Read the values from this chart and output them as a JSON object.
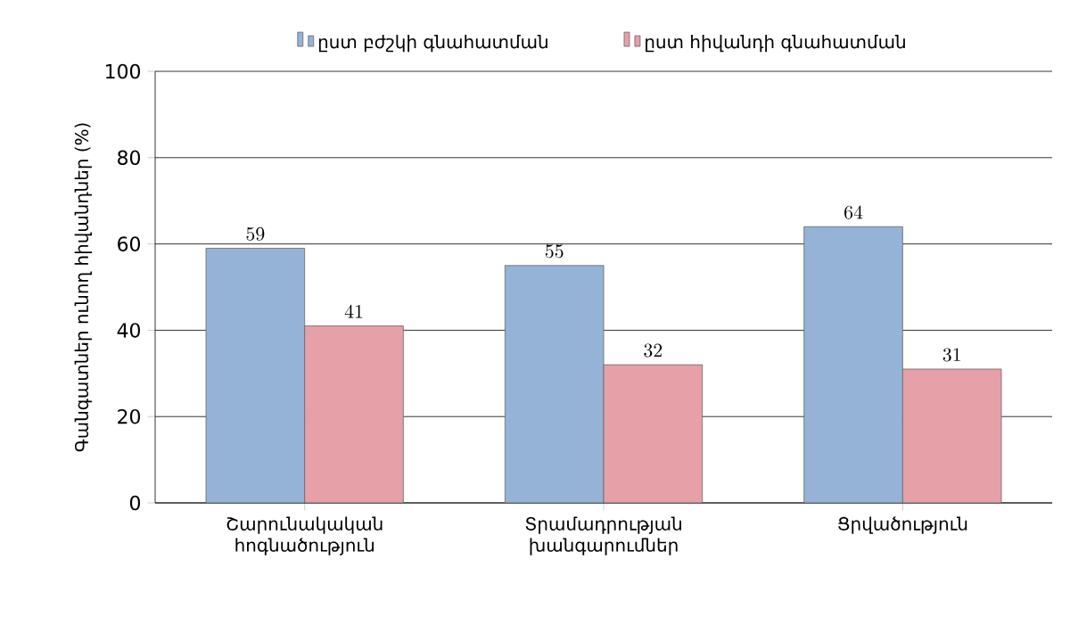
{
  "chart_data": {
    "type": "bar",
    "ylabel": "Գանգատներ ունող հիվանդներ (%)",
    "categories": [
      "Շարունակական հոգնածություն",
      "Տրամադրության խանգարումներ",
      "Ցրվածություն"
    ],
    "series": [
      {
        "name": "ըստ բժշկի  գնահատման",
        "color": "#95b3d7",
        "values": [
          59,
          55,
          64
        ]
      },
      {
        "name": "ըստ հիվանդի գնահատման",
        "color": "#e6a0a8",
        "values": [
          41,
          32,
          31
        ]
      }
    ],
    "ylim": [
      0,
      100
    ],
    "yticks": [
      0,
      20,
      40,
      60,
      80,
      100
    ],
    "grid": "y",
    "legend": "top",
    "data_labels": true
  }
}
